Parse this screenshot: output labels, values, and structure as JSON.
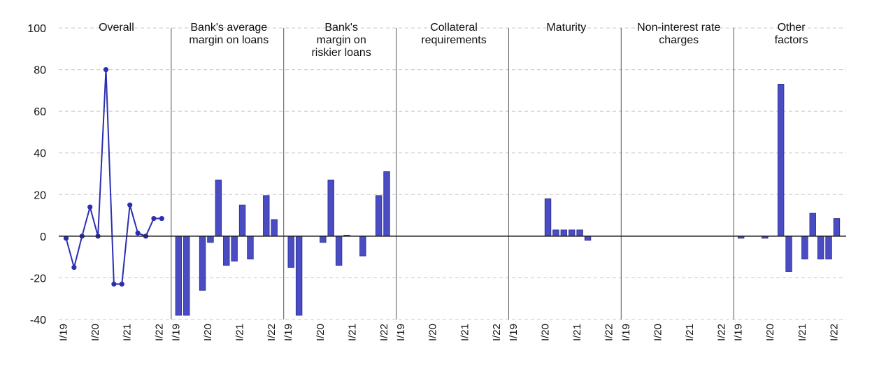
{
  "chart_data": {
    "type": "bar",
    "ylim": [
      -40,
      100
    ],
    "yticks": [
      100,
      80,
      60,
      40,
      20,
      0,
      -20,
      -40
    ],
    "grid": true,
    "colors": {
      "bar": "#4a4cc4",
      "bar_stroke": "#2a2b8a",
      "line": "#2b2fb0",
      "axis": "#222222",
      "grid": "#c8c8c8",
      "divider": "#555555"
    },
    "x_tick_labels": [
      "I/19",
      "I/20",
      "I/21",
      "I/22"
    ],
    "panels": [
      {
        "title": [
          "Overall"
        ],
        "type": "line",
        "values": [
          -1,
          -15,
          0,
          14,
          0,
          80,
          -23,
          -23,
          15,
          1.5,
          0,
          8.5,
          8.5
        ]
      },
      {
        "title": [
          "Bank's average",
          "margin on loans"
        ],
        "type": "bar",
        "values": [
          -38,
          -38,
          0,
          -26,
          -3,
          27,
          -14,
          -12,
          15,
          -11,
          0,
          19.5,
          8
        ]
      },
      {
        "title": [
          "Bank's",
          "margin on",
          "riskier loans"
        ],
        "type": "bar",
        "values": [
          -15,
          -38,
          0,
          0,
          -3,
          27,
          -14,
          0.5,
          0,
          -9.5,
          0,
          19.5,
          31
        ]
      },
      {
        "title": [
          "Collateral",
          "requirements"
        ],
        "type": "bar",
        "values": [
          0,
          0,
          0,
          0,
          0,
          0,
          0,
          0,
          0,
          0,
          0,
          0,
          0
        ]
      },
      {
        "title": [
          "Maturity"
        ],
        "type": "bar",
        "values": [
          0,
          0,
          0,
          0,
          18,
          3,
          3,
          3,
          3,
          -2,
          0,
          0,
          0
        ]
      },
      {
        "title": [
          "Non-interest rate",
          "charges"
        ],
        "type": "bar",
        "values": [
          0,
          0,
          0,
          0,
          0,
          0,
          0,
          0,
          0,
          0,
          0,
          0,
          0
        ]
      },
      {
        "title": [
          "Other",
          "factors"
        ],
        "type": "bar",
        "values": [
          -1,
          0,
          0,
          -1,
          0,
          73,
          -17,
          0,
          -11,
          11,
          -11,
          -11,
          8.5
        ]
      }
    ]
  }
}
